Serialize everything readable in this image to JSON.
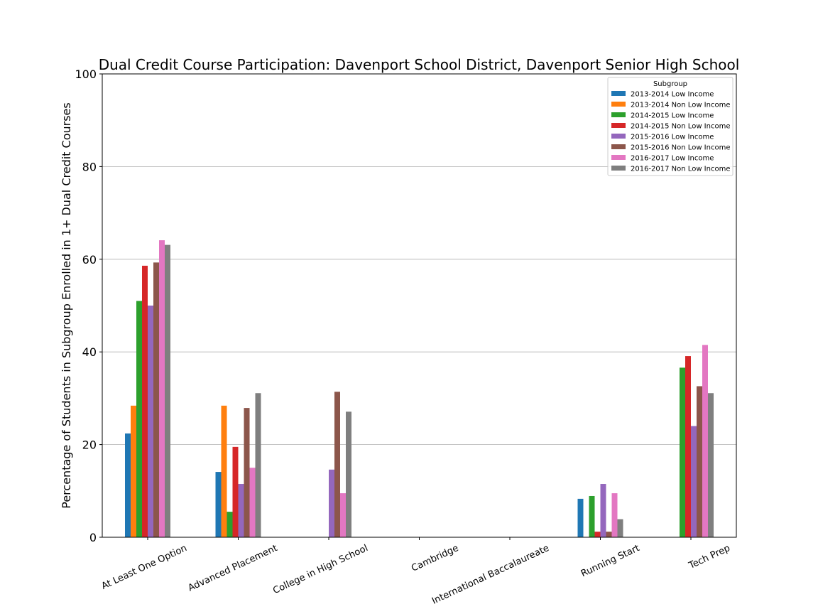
{
  "chart_data": {
    "type": "bar",
    "title": "Dual Credit Course Participation: Davenport School District, Davenport Senior High School",
    "xlabel": "",
    "ylabel": "Percentage of Students in Subgroup Enrolled in 1+ Dual Credit Courses",
    "ylim": [
      0,
      100
    ],
    "yticks": [
      "0",
      "20",
      "40",
      "60",
      "80",
      "100"
    ],
    "grid": "horizontal",
    "legend_title": "Subgroup",
    "legend_position": "top-right",
    "categories": [
      "At Least One Option",
      "Advanced Placement",
      "College in High School",
      "Cambridge",
      "International Baccalaureate",
      "Running Start",
      "Tech Prep"
    ],
    "series": [
      {
        "name": "2013-2014 Low Income",
        "color": "#1f77b4",
        "values": [
          22.4,
          14.1,
          0,
          0,
          0,
          8.3,
          0
        ]
      },
      {
        "name": "2013-2014 Non Low Income",
        "color": "#ff7f0e",
        "values": [
          28.4,
          28.4,
          0,
          0,
          0,
          0,
          0
        ]
      },
      {
        "name": "2014-2015 Low Income",
        "color": "#2ca02c",
        "values": [
          51.0,
          5.5,
          0,
          0,
          0,
          8.9,
          36.6
        ]
      },
      {
        "name": "2014-2015 Non Low Income",
        "color": "#d62728",
        "values": [
          58.6,
          19.5,
          0,
          0,
          0,
          1.2,
          39.1
        ]
      },
      {
        "name": "2015-2016 Low Income",
        "color": "#9467bd",
        "values": [
          50.0,
          11.5,
          14.6,
          0,
          0,
          11.5,
          24.0
        ]
      },
      {
        "name": "2015-2016 Non Low Income",
        "color": "#8c564b",
        "values": [
          59.3,
          27.9,
          31.4,
          0,
          0,
          1.2,
          32.6
        ]
      },
      {
        "name": "2016-2017 Low Income",
        "color": "#e377c2",
        "values": [
          64.1,
          15.0,
          9.5,
          0,
          0,
          9.5,
          41.5
        ]
      },
      {
        "name": "2016-2017 Non Low Income",
        "color": "#7f7f7f",
        "values": [
          63.1,
          31.1,
          27.1,
          0,
          0,
          3.9,
          31.1
        ]
      }
    ]
  }
}
